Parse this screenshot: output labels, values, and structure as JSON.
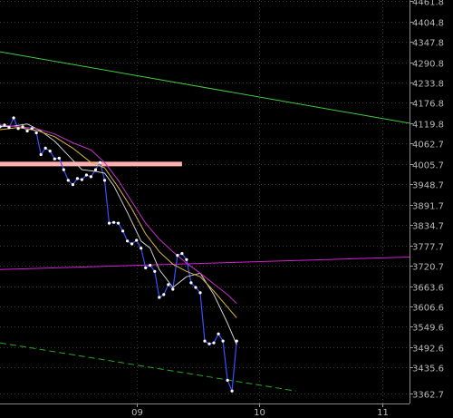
{
  "chart_data": {
    "type": "line",
    "title": "",
    "xlabel": "",
    "ylabel": "",
    "x_tick_labels": [
      {
        "label": "09",
        "x": 30
      },
      {
        "label": "10",
        "x": 57
      },
      {
        "label": "11",
        "x": 84
      }
    ],
    "y_ticks": [
      4461.8,
      4404.8,
      4347.8,
      4290.8,
      4233.8,
      4176.8,
      4119.8,
      4062.7,
      4005.7,
      3948.7,
      3891.7,
      3834.7,
      3777.7,
      3720.7,
      3663.6,
      3606.6,
      3549.6,
      3492.6,
      3435.6,
      3362.7
    ],
    "ylim": [
      3335,
      4465
    ],
    "xlim": [
      0,
      90
    ],
    "grid": true,
    "legend": "none",
    "series": [
      {
        "key": "price",
        "color": "#3b4fff",
        "marker": "dot",
        "points": [
          [
            0,
            4110
          ],
          [
            1,
            4115
          ],
          [
            2,
            4108
          ],
          [
            3,
            4135
          ],
          [
            4,
            4105
          ],
          [
            5,
            4110
          ],
          [
            6,
            4098
          ],
          [
            7,
            4105
          ],
          [
            8,
            4093
          ],
          [
            9,
            4032
          ],
          [
            10,
            4050
          ],
          [
            11,
            4042
          ],
          [
            12,
            4020
          ],
          [
            13,
            4022
          ],
          [
            14,
            3990
          ],
          [
            15,
            3960
          ],
          [
            16,
            3948
          ],
          [
            17,
            3965
          ],
          [
            18,
            3962
          ],
          [
            19,
            3975
          ],
          [
            20,
            3970
          ],
          [
            21,
            3990
          ],
          [
            22,
            4010
          ],
          [
            23,
            3960
          ],
          [
            24,
            3840
          ],
          [
            25,
            3842
          ],
          [
            26,
            3840
          ],
          [
            27,
            3818
          ],
          [
            28,
            3790
          ],
          [
            29,
            3782
          ],
          [
            30,
            3792
          ],
          [
            31,
            3770
          ],
          [
            32,
            3715
          ],
          [
            33,
            3722
          ],
          [
            34,
            3705
          ],
          [
            35,
            3632
          ],
          [
            36,
            3640
          ],
          [
            37,
            3668
          ],
          [
            38,
            3655
          ],
          [
            39,
            3750
          ],
          [
            40,
            3755
          ],
          [
            41,
            3738
          ],
          [
            42,
            3673
          ],
          [
            43,
            3660
          ],
          [
            44,
            3645
          ],
          [
            45,
            3510
          ],
          [
            46,
            3502
          ],
          [
            47,
            3505
          ],
          [
            48,
            3530
          ],
          [
            49,
            3510
          ],
          [
            50,
            3400
          ],
          [
            51,
            3370
          ],
          [
            52,
            3510
          ]
        ]
      },
      {
        "key": "ma-short",
        "color": "#cfcfcf",
        "points": [
          [
            0,
            4110
          ],
          [
            3,
            4112
          ],
          [
            6,
            4118
          ],
          [
            9,
            4098
          ],
          [
            12,
            4070
          ],
          [
            15,
            4030
          ],
          [
            18,
            3990
          ],
          [
            21,
            3985
          ],
          [
            23,
            3980
          ],
          [
            25,
            3945
          ],
          [
            28,
            3870
          ],
          [
            31,
            3790
          ],
          [
            33,
            3770
          ],
          [
            35,
            3710
          ],
          [
            38,
            3660
          ],
          [
            41,
            3690
          ],
          [
            44,
            3700
          ],
          [
            47,
            3640
          ],
          [
            50,
            3560
          ],
          [
            52,
            3500
          ]
        ]
      },
      {
        "key": "ma-mid",
        "color": "#d7b63f",
        "points": [
          [
            0,
            4102
          ],
          [
            4,
            4108
          ],
          [
            8,
            4100
          ],
          [
            12,
            4082
          ],
          [
            16,
            4050
          ],
          [
            20,
            4010
          ],
          [
            23,
            3995
          ],
          [
            26,
            3940
          ],
          [
            29,
            3880
          ],
          [
            32,
            3810
          ],
          [
            35,
            3760
          ],
          [
            38,
            3725
          ],
          [
            41,
            3705
          ],
          [
            44,
            3690
          ],
          [
            47,
            3650
          ],
          [
            50,
            3605
          ],
          [
            52,
            3575
          ]
        ]
      },
      {
        "key": "ma-long",
        "color": "#c531c5",
        "points": [
          [
            0,
            4115
          ],
          [
            4,
            4110
          ],
          [
            8,
            4105
          ],
          [
            12,
            4090
          ],
          [
            16,
            4065
          ],
          [
            20,
            4045
          ],
          [
            23,
            4010
          ],
          [
            26,
            3960
          ],
          [
            29,
            3900
          ],
          [
            32,
            3840
          ],
          [
            35,
            3795
          ],
          [
            38,
            3760
          ],
          [
            41,
            3728
          ],
          [
            44,
            3700
          ],
          [
            47,
            3670
          ],
          [
            50,
            3640
          ],
          [
            52,
            3615
          ]
        ]
      },
      {
        "key": "trend-green",
        "color": "#43c943",
        "points": [
          [
            0,
            4320
          ],
          [
            90,
            4120
          ]
        ]
      },
      {
        "key": "trend-magenta",
        "color": "#d21fd2",
        "points": [
          [
            0,
            3710
          ],
          [
            90,
            3745
          ]
        ]
      },
      {
        "key": "trend-green-dashed",
        "color": "#28a828",
        "dashed": true,
        "points": [
          [
            0,
            3505
          ],
          [
            65,
            3370
          ]
        ]
      }
    ],
    "support_level": {
      "y": 4005.7,
      "x_start": 0,
      "x_end": 40,
      "color": "#ffb0b0"
    }
  }
}
